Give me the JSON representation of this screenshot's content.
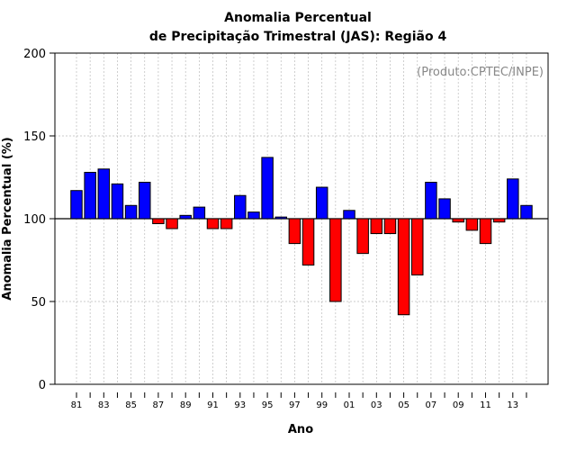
{
  "chart_data": {
    "type": "bar",
    "title_line1": "Anomalia Percentual",
    "title_line2": "de Precipitação Trimestral (JAS): Região 4",
    "xlabel": "Ano",
    "ylabel": "Anomalia Percentual (%)",
    "source_label": "(Produto:CPTEC/INPE)",
    "baseline": 100,
    "ylim": [
      0,
      200
    ],
    "yticks": [
      0,
      50,
      100,
      150,
      200
    ],
    "x_tick_labels": [
      "81",
      "83",
      "85",
      "87",
      "89",
      "91",
      "93",
      "95",
      "97",
      "99",
      "01",
      "03",
      "05",
      "07",
      "09",
      "11",
      "13"
    ],
    "categories": [
      "1981",
      "1982",
      "1983",
      "1984",
      "1985",
      "1986",
      "1987",
      "1988",
      "1989",
      "1990",
      "1991",
      "1992",
      "1993",
      "1994",
      "1995",
      "1996",
      "1997",
      "1998",
      "1999",
      "2000",
      "2001",
      "2002",
      "2003",
      "2004",
      "2005",
      "2006",
      "2007",
      "2008",
      "2009",
      "2010",
      "2011",
      "2012",
      "2013",
      "2014"
    ],
    "values": [
      117,
      128,
      130,
      121,
      108,
      122,
      97,
      94,
      102,
      107,
      94,
      94,
      114,
      104,
      137,
      101,
      85,
      72,
      119,
      50,
      105,
      79,
      91,
      91,
      42,
      66,
      122,
      112,
      98,
      93,
      85,
      98,
      124,
      108
    ],
    "colors": {
      "above": "#0000ff",
      "below": "#ff0000",
      "grid": "#bbbbbb"
    },
    "grid": true
  }
}
